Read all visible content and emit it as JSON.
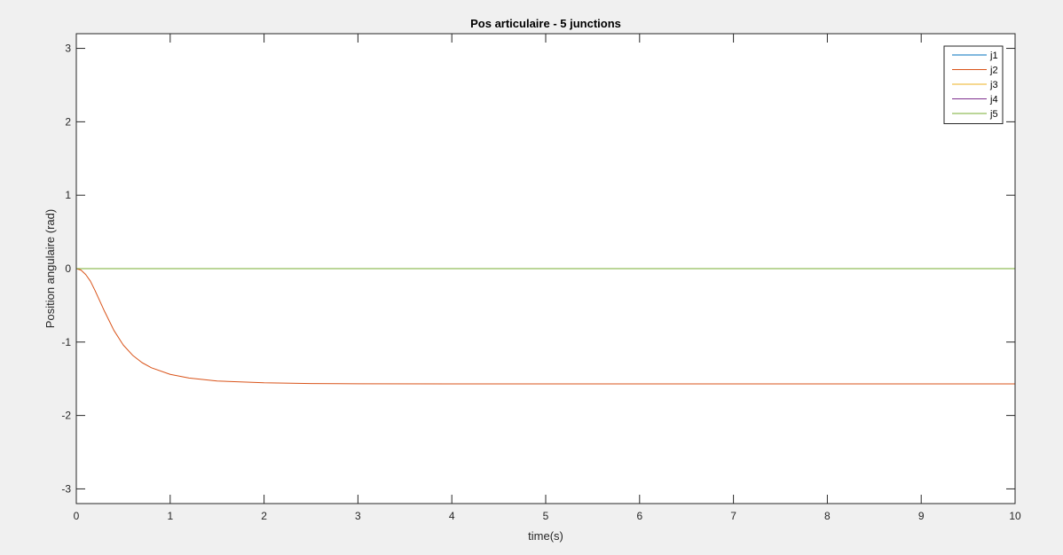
{
  "chart_data": {
    "type": "line",
    "title": "Pos articulaire - 5 junctions",
    "xlabel": "time(s)",
    "ylabel": "Position angulaire (rad)",
    "xlim": [
      0,
      10
    ],
    "ylim": [
      -3.2,
      3.2
    ],
    "xticks": [
      0,
      1,
      2,
      3,
      4,
      5,
      6,
      7,
      8,
      9,
      10
    ],
    "yticks": [
      -3,
      -2,
      -1,
      0,
      1,
      2,
      3
    ],
    "grid": false,
    "legend_position": "top-right",
    "x": [
      0,
      0.05,
      0.1,
      0.15,
      0.2,
      0.3,
      0.4,
      0.5,
      0.6,
      0.7,
      0.8,
      1.0,
      1.2,
      1.5,
      2.0,
      2.5,
      3.0,
      4.0,
      5.0,
      6.0,
      7.0,
      8.0,
      9.0,
      10.0
    ],
    "series": [
      {
        "name": "j1",
        "color": "#0072bd",
        "values": [
          0,
          0,
          0,
          0,
          0,
          0,
          0,
          0,
          0,
          0,
          0,
          0,
          0,
          0,
          0,
          0,
          0,
          0,
          0,
          0,
          0,
          0,
          0,
          0
        ]
      },
      {
        "name": "j2",
        "color": "#d95319",
        "values": [
          0,
          -0.02,
          -0.08,
          -0.17,
          -0.3,
          -0.58,
          -0.84,
          -1.04,
          -1.18,
          -1.28,
          -1.35,
          -1.44,
          -1.49,
          -1.53,
          -1.555,
          -1.565,
          -1.568,
          -1.57,
          -1.57,
          -1.57,
          -1.57,
          -1.57,
          -1.57,
          -1.57
        ]
      },
      {
        "name": "j3",
        "color": "#edb120",
        "values": [
          0,
          0,
          0,
          0,
          0,
          0,
          0,
          0,
          0,
          0,
          0,
          0,
          0,
          0,
          0,
          0,
          0,
          0,
          0,
          0,
          0,
          0,
          0,
          0
        ]
      },
      {
        "name": "j4",
        "color": "#7e2f8e",
        "values": [
          0,
          0,
          0,
          0,
          0,
          0,
          0,
          0,
          0,
          0,
          0,
          0,
          0,
          0,
          0,
          0,
          0,
          0,
          0,
          0,
          0,
          0,
          0,
          0
        ]
      },
      {
        "name": "j5",
        "color": "#77ac30",
        "values": [
          0,
          0,
          0,
          0,
          0,
          0,
          0,
          0,
          0,
          0,
          0,
          0,
          0,
          0,
          0,
          0,
          0,
          0,
          0,
          0,
          0,
          0,
          0,
          0
        ]
      }
    ]
  }
}
